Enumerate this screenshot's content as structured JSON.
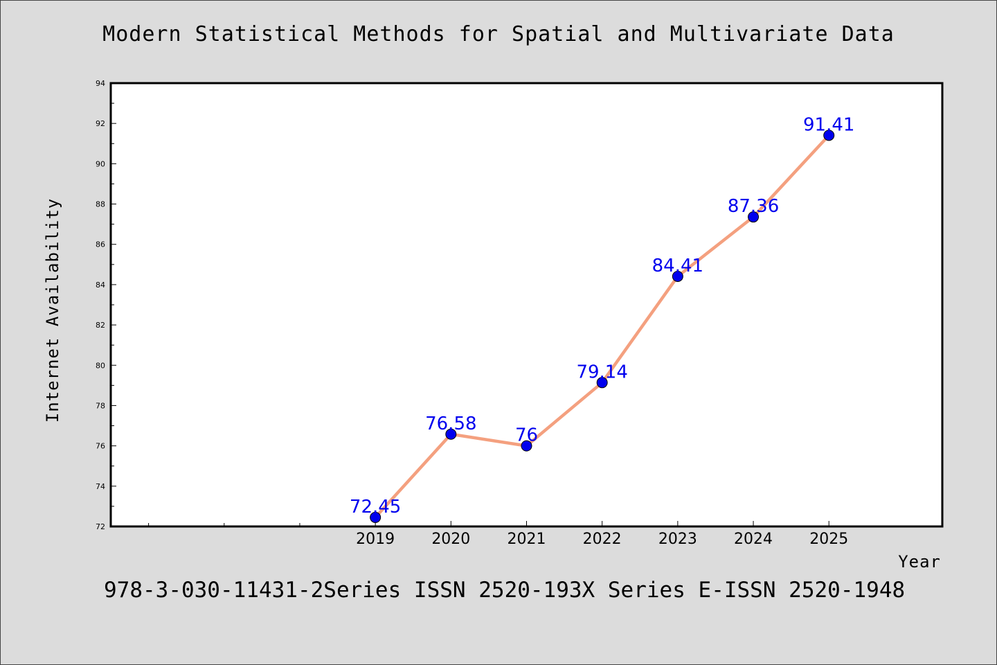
{
  "header": {
    "title": "Modern Statistical Methods for Spatial and Multivariate Data"
  },
  "footer": {
    "text": "978-3-030-11431-2Series ISSN 2520-193X Series E-ISSN 2520-1948"
  },
  "chart_data": {
    "type": "line",
    "title": "Modern Statistical Methods for Spatial and Multivariate Data",
    "xlabel": "Year",
    "ylabel": "Internet Availability",
    "x": [
      "2019",
      "2020",
      "2021",
      "2022",
      "2023",
      "2024",
      "2025"
    ],
    "xlim": [
      2015.5,
      2026.5
    ],
    "ylim": [
      72,
      94
    ],
    "y_ticks": [
      72,
      74,
      76,
      78,
      80,
      82,
      84,
      86,
      88,
      90,
      92,
      94
    ],
    "series": [
      {
        "values": [
          72.45,
          76.58,
          76,
          79.14,
          84.41,
          87.36,
          91.41
        ],
        "labels": [
          "72.45",
          "76.58",
          "76",
          "79.14",
          "84.41",
          "87.36",
          "91.41"
        ]
      }
    ],
    "grid": false,
    "legend": "none",
    "colors": {
      "line": "#f4a07f",
      "marker": "#0000ee",
      "label": "#0000ee",
      "background": "#dcdcdc",
      "plot_background": "#ffffff"
    }
  }
}
